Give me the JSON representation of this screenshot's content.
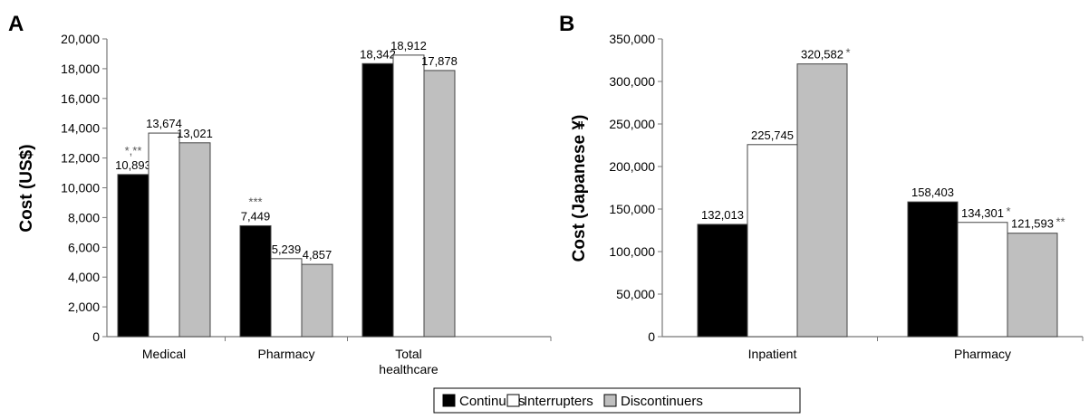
{
  "legend": [
    "Continuers",
    "Interrupters",
    "Discontinuers"
  ],
  "colors": {
    "Continuers": "#000000",
    "Interrupters": "#ffffff",
    "Discontinuers": "#bfbfbf"
  },
  "chart_data": [
    {
      "type": "bar",
      "panel_label": "A",
      "ylabel": "Cost (US$)",
      "ylim": [
        0,
        20000
      ],
      "yticks": [
        "0",
        "2,000",
        "4,000",
        "6,000",
        "8,000",
        "10,000",
        "12,000",
        "14,000",
        "16,000",
        "18,000",
        "20,000"
      ],
      "categories": [
        [
          "Medical"
        ],
        [
          "Pharmacy"
        ],
        [
          "Total",
          "healthcare"
        ]
      ],
      "series": [
        {
          "name": "Continuers",
          "values": [
            10893,
            7449,
            18342
          ],
          "labels": [
            "10,893",
            "7,449",
            "18,342"
          ],
          "marks": [
            "*,**",
            "***",
            ""
          ]
        },
        {
          "name": "Interrupters",
          "values": [
            13674,
            5239,
            18912
          ],
          "labels": [
            "13,674",
            "5,239",
            "18,912"
          ],
          "marks": [
            "",
            "",
            ""
          ]
        },
        {
          "name": "Discontinuers",
          "values": [
            13021,
            4857,
            17878
          ],
          "labels": [
            "13,021",
            "4,857",
            "17,878"
          ],
          "marks": [
            "",
            "",
            ""
          ]
        }
      ],
      "grid": false,
      "legend_position": "bottom"
    },
    {
      "type": "bar",
      "panel_label": "B",
      "ylabel": "Cost (Japanese ¥)",
      "ylim": [
        0,
        350000
      ],
      "yticks": [
        "0",
        "50,000",
        "100,000",
        "150,000",
        "200,000",
        "250,000",
        "300,000",
        "350,000"
      ],
      "categories": [
        [
          "Inpatient"
        ],
        [
          "Pharmacy"
        ]
      ],
      "series": [
        {
          "name": "Continuers",
          "values": [
            132013,
            158403
          ],
          "labels": [
            "132,013",
            "158,403"
          ],
          "marks": [
            "",
            ""
          ]
        },
        {
          "name": "Interrupters",
          "values": [
            225745,
            134301
          ],
          "labels": [
            "225,745",
            "134,301"
          ],
          "marks": [
            "",
            "*"
          ]
        },
        {
          "name": "Discontinuers",
          "values": [
            320582,
            121593
          ],
          "labels": [
            "320,582",
            "121,593"
          ],
          "marks": [
            "*",
            "**"
          ]
        }
      ],
      "grid": false,
      "legend_position": "bottom"
    }
  ]
}
